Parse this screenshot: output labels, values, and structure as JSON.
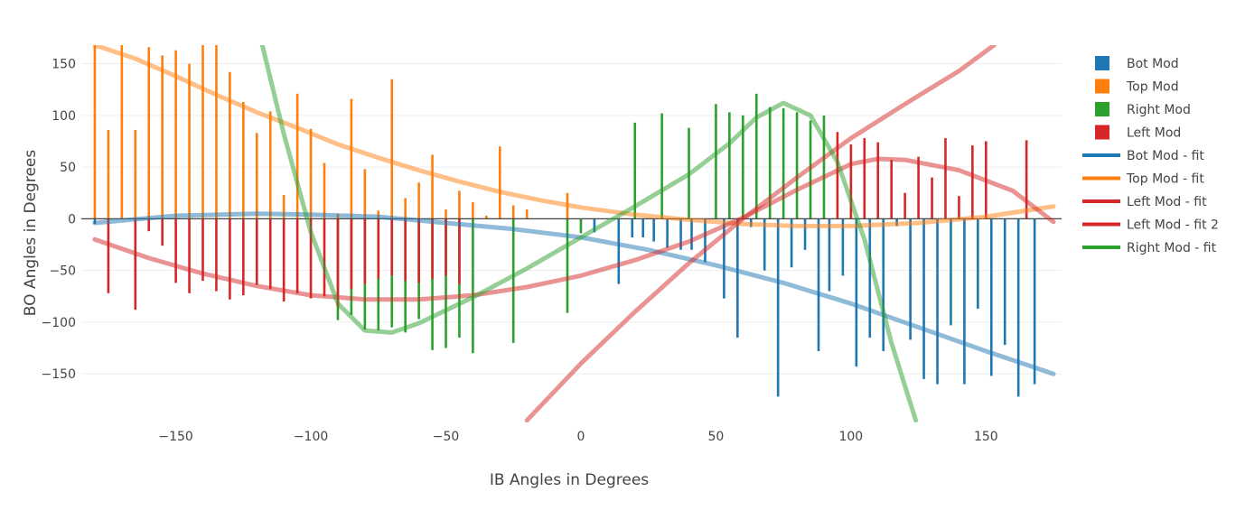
{
  "chart_data": {
    "type": "bar",
    "xlabel": "IB Angles in Degrees",
    "ylabel": "BO Angles in Degrees",
    "xlim": [
      -185,
      178
    ],
    "ylim": [
      -197,
      168
    ],
    "xticks": [
      -150,
      -100,
      -50,
      0,
      50,
      100,
      150
    ],
    "yticks": [
      150,
      100,
      50,
      0,
      -50,
      -100,
      -150
    ],
    "xtick_labels": [
      "−150",
      "−100",
      "−50",
      "0",
      "50",
      "100",
      "150"
    ],
    "ytick_labels": [
      "150",
      "100",
      "50",
      "0",
      "−50",
      "−100",
      "−150"
    ],
    "grid": true,
    "legend_position": "right",
    "series": [
      {
        "name": "Bot Mod",
        "kind": "bar",
        "color": "#1f77b4",
        "x": [
          -180,
          5,
          14,
          19,
          23,
          27,
          32,
          37,
          41,
          46,
          53,
          58,
          63,
          68,
          73,
          78,
          83,
          88,
          92,
          97,
          102,
          107,
          112,
          117,
          122,
          127,
          132,
          137,
          142,
          147,
          152,
          157,
          162,
          168
        ],
        "y": [
          -5,
          -13,
          -63,
          -18,
          -18,
          -22,
          -28,
          -30,
          -30,
          -42,
          -77,
          -115,
          -8,
          -50,
          -172,
          -47,
          -30,
          -128,
          -70,
          -55,
          -143,
          -115,
          -128,
          -7,
          -117,
          -155,
          -160,
          -103,
          -160,
          -87,
          -152,
          -122,
          -172,
          -160
        ]
      },
      {
        "name": "Top Mod",
        "kind": "bar",
        "color": "#ff7f0e",
        "x": [
          -180,
          -175,
          -170,
          -165,
          -160,
          -155,
          -150,
          -145,
          -140,
          -135,
          -130,
          -125,
          -120,
          -115,
          -110,
          -105,
          -100,
          -95,
          -90,
          -85,
          -80,
          -75,
          -70,
          -65,
          -60,
          -55,
          -50,
          -45,
          -40,
          -35,
          -30,
          -25,
          -20,
          -5
        ],
        "y": [
          168,
          86,
          168,
          86,
          166,
          158,
          163,
          150,
          168,
          168,
          142,
          113,
          83,
          104,
          23,
          121,
          87,
          54,
          5,
          116,
          48,
          8,
          135,
          20,
          35,
          62,
          9,
          27,
          16,
          3,
          70,
          13,
          9,
          25
        ]
      },
      {
        "name": "Right Mod",
        "kind": "bar",
        "color": "#2ca02c",
        "x": [
          -90,
          -85,
          -80,
          -75,
          -70,
          -65,
          -60,
          -55,
          -50,
          -40,
          -45,
          -25,
          -5,
          0,
          20,
          30,
          40,
          50,
          55,
          60,
          65,
          70,
          75,
          80,
          85,
          90
        ],
        "y": [
          -98,
          -93,
          -107,
          -108,
          -105,
          -110,
          -97,
          -127,
          -125,
          -130,
          -115,
          -120,
          -91,
          -14,
          93,
          102,
          88,
          111,
          103,
          100,
          121,
          108,
          107,
          103,
          95,
          100
        ]
      },
      {
        "name": "Left Mod",
        "kind": "bar",
        "color": "#d62728",
        "x": [
          -175,
          -165,
          -160,
          -155,
          -150,
          -145,
          -140,
          -135,
          -130,
          -125,
          -120,
          -115,
          -110,
          -105,
          -100,
          -95,
          -90,
          -85,
          -80,
          -75,
          -70,
          -65,
          -60,
          -55,
          -50,
          -45,
          95,
          100,
          105,
          110,
          115,
          120,
          125,
          130,
          135,
          140,
          145,
          150,
          165
        ],
        "y": [
          -72,
          -88,
          -12,
          -26,
          -62,
          -72,
          -60,
          -70,
          -78,
          -74,
          -64,
          -68,
          -80,
          -72,
          -77,
          -75,
          -85,
          -68,
          -63,
          -58,
          -55,
          -60,
          -62,
          -58,
          -55,
          -63,
          84,
          72,
          78,
          74,
          57,
          25,
          60,
          40,
          78,
          22,
          71,
          75,
          76
        ]
      },
      {
        "name": "Bot Mod - fit",
        "kind": "line",
        "color": "#1f77b4",
        "x": [
          -180,
          -150,
          -120,
          -100,
          -75,
          -50,
          -25,
          0,
          25,
          50,
          75,
          100,
          125,
          150,
          175
        ],
        "y": [
          -4,
          3,
          5,
          4,
          2,
          -4,
          -10,
          -18,
          -30,
          -45,
          -62,
          -82,
          -105,
          -128,
          -150
        ]
      },
      {
        "name": "Top Mod - fit",
        "kind": "line",
        "color": "#ff7f0e",
        "x": [
          -180,
          -165,
          -150,
          -135,
          -120,
          -105,
          -90,
          -75,
          -60,
          -45,
          -30,
          -15,
          0,
          20,
          40,
          60,
          80,
          100,
          125,
          150,
          175
        ],
        "y": [
          168,
          155,
          138,
          120,
          103,
          88,
          72,
          59,
          47,
          36,
          26,
          18,
          11,
          4,
          -1,
          -5,
          -7,
          -7,
          -4,
          2,
          12
        ]
      },
      {
        "name": "Left Mod - fit",
        "kind": "line",
        "color": "#d62728",
        "x": [
          -180,
          -160,
          -140,
          -120,
          -100,
          -80,
          -60,
          -40,
          -20,
          0,
          20,
          40,
          60,
          80,
          100,
          110,
          120,
          140,
          160,
          175
        ],
        "y": [
          -20,
          -38,
          -53,
          -65,
          -74,
          -78,
          -78,
          -74,
          -66,
          -55,
          -40,
          -22,
          1,
          28,
          53,
          58,
          57,
          47,
          27,
          -3
        ]
      },
      {
        "name": "Left Mod - fit 2",
        "kind": "line",
        "color": "#d62728",
        "x": [
          -20,
          0,
          20,
          40,
          60,
          80,
          100,
          120,
          140,
          153
        ],
        "y": [
          -195,
          -140,
          -90,
          -43,
          0,
          40,
          78,
          111,
          143,
          168
        ]
      },
      {
        "name": "Right Mod - fit",
        "kind": "line",
        "color": "#2ca02c",
        "x": [
          -118,
          -110,
          -100,
          -90,
          -80,
          -70,
          -60,
          -40,
          -20,
          0,
          20,
          40,
          55,
          65,
          75,
          85,
          95,
          105,
          115,
          124
        ],
        "y": [
          168,
          82,
          -13,
          -82,
          -108,
          -110,
          -101,
          -76,
          -48,
          -18,
          12,
          43,
          73,
          98,
          112,
          100,
          55,
          -20,
          -120,
          -195
        ]
      }
    ]
  }
}
